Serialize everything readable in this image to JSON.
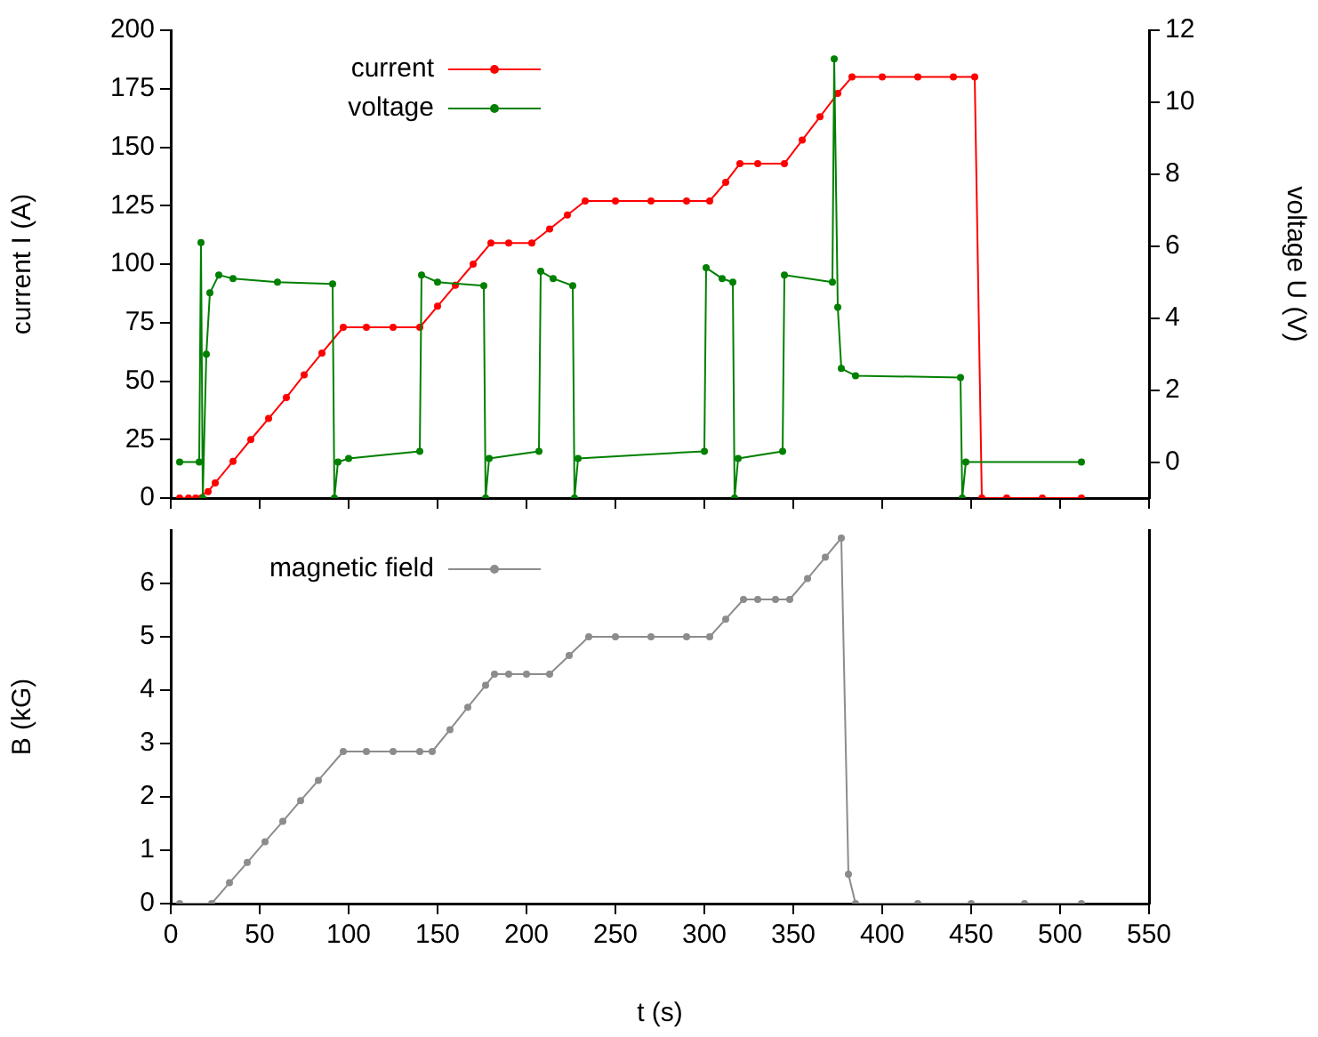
{
  "chart_data": [
    {
      "type": "line",
      "ylabel": "current I (A)",
      "y2label": "voltage U (V)",
      "xlim": [
        0,
        550
      ],
      "xticks": [
        0,
        50,
        100,
        150,
        200,
        250,
        300,
        350,
        400,
        450,
        500,
        550
      ],
      "ylim": [
        0,
        200
      ],
      "yticks": [
        0,
        25,
        50,
        75,
        100,
        125,
        150,
        175,
        200
      ],
      "y2lim": [
        -1,
        12
      ],
      "y2ticks": [
        0,
        2,
        4,
        6,
        8,
        10,
        12
      ],
      "tick_labels": "y",
      "legend": "top left",
      "marker": "circle",
      "line_style": "solid",
      "grid": false,
      "series": [
        {
          "name": "current",
          "color": "#ff0000",
          "x": [
            5,
            10,
            14,
            21,
            25,
            35,
            45,
            55,
            65,
            75,
            85,
            97,
            110,
            125,
            140,
            150,
            160,
            170,
            180,
            190,
            203,
            213,
            223,
            233,
            250,
            270,
            290,
            303,
            312,
            320,
            330,
            345,
            355,
            365,
            375,
            383,
            400,
            420,
            440,
            452,
            456,
            470,
            490,
            512
          ],
          "values": [
            0,
            0,
            0,
            2.8,
            6.5,
            15.7,
            25,
            34,
            43,
            52.7,
            62,
            73,
            73,
            73,
            73,
            82,
            91,
            100,
            109,
            109,
            109,
            115,
            121,
            127,
            127,
            127,
            127,
            127,
            135,
            143,
            143,
            143,
            153,
            163,
            173,
            180,
            180,
            180,
            180,
            180,
            0,
            0,
            0,
            0
          ]
        },
        {
          "name": "voltage",
          "color": "#008000",
          "axis": "y2",
          "x": [
            5,
            16,
            17,
            18,
            20,
            22,
            27,
            35,
            60,
            91,
            92,
            94,
            100,
            140,
            141,
            150,
            176,
            177,
            179,
            207,
            208,
            215,
            226,
            227,
            229,
            300,
            301,
            310,
            316,
            317,
            319,
            344,
            345,
            372,
            373,
            375,
            377,
            385,
            444,
            445,
            447,
            512
          ],
          "values": [
            0,
            0,
            6.1,
            -1,
            3,
            4.7,
            5.2,
            5.1,
            5,
            4.95,
            -1,
            0,
            0.1,
            0.3,
            5.2,
            5,
            4.9,
            -1,
            0.1,
            0.3,
            5.3,
            5.1,
            4.9,
            -1,
            0.1,
            0.3,
            5.4,
            5.1,
            5,
            -1,
            0.1,
            0.3,
            5.2,
            5,
            11.2,
            4.3,
            2.6,
            2.4,
            2.35,
            -1,
            0,
            0
          ]
        }
      ]
    },
    {
      "type": "line",
      "xlabel": "t (s)",
      "ylabel": "B (kG)",
      "xlim": [
        0,
        550
      ],
      "xticks": [
        0,
        50,
        100,
        150,
        200,
        250,
        300,
        350,
        400,
        450,
        500,
        550
      ],
      "ylim": [
        0,
        7
      ],
      "yticks": [
        0,
        1,
        2,
        3,
        4,
        5,
        6
      ],
      "legend": "top left",
      "marker": "circle",
      "line_style": "solid",
      "grid": false,
      "series": [
        {
          "name": "magnetic field",
          "color": "#8c8c8c",
          "x": [
            5,
            23,
            33,
            43,
            53,
            63,
            73,
            83,
            97,
            110,
            125,
            140,
            147,
            157,
            167,
            177,
            182,
            190,
            200,
            213,
            224,
            235,
            250,
            270,
            290,
            303,
            312,
            322,
            330,
            340,
            348,
            358,
            368,
            377,
            381,
            385,
            420,
            450,
            480,
            512
          ],
          "values": [
            0,
            0,
            0.39,
            0.77,
            1.16,
            1.54,
            1.93,
            2.31,
            2.85,
            2.85,
            2.85,
            2.85,
            2.85,
            3.26,
            3.68,
            4.09,
            4.3,
            4.3,
            4.3,
            4.3,
            4.65,
            5,
            5,
            5,
            5,
            5,
            5.33,
            5.7,
            5.7,
            5.7,
            5.7,
            6.09,
            6.49,
            6.85,
            0.55,
            0,
            0,
            0,
            0,
            0
          ]
        }
      ]
    }
  ]
}
